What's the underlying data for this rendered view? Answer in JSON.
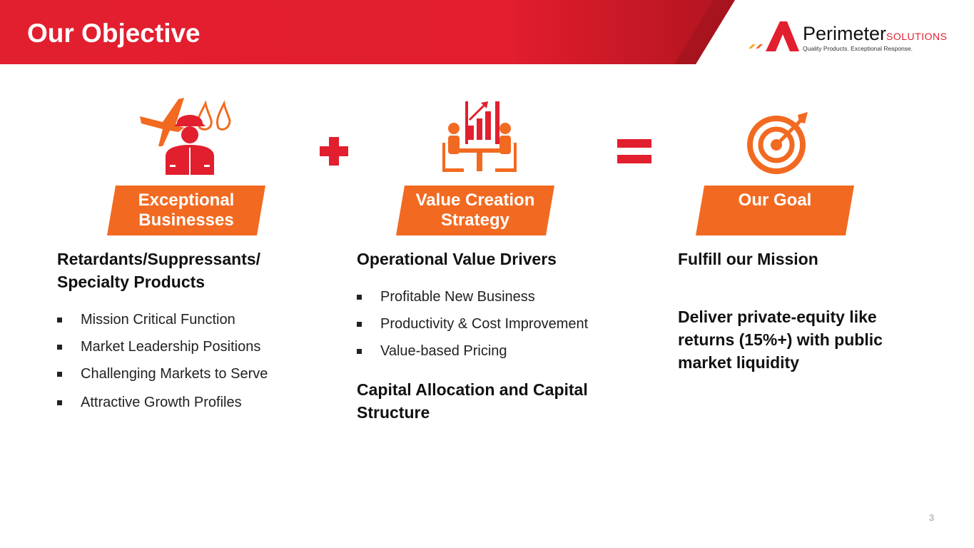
{
  "header": {
    "title": "Our Objective"
  },
  "logo": {
    "name": "Perimeter",
    "suffix": "SOLUTIONS",
    "tagline": "Quality Products. Exceptional Response."
  },
  "columns": [
    {
      "tag": "Exceptional Businesses",
      "icon": "firefighter-plane-drops-icon",
      "heading": "Retardants/Suppressants/ Specialty Products",
      "items": [
        "Mission Critical Function",
        "Market Leadership Positions",
        "Challenging Markets to Serve",
        "Attractive Growth Profiles"
      ]
    },
    {
      "tag": "Value Creation Strategy",
      "icon": "meeting-chart-icon",
      "heading": "Operational Value Drivers",
      "items": [
        "Profitable New Business",
        "Productivity & Cost Improvement",
        "Value-based Pricing"
      ],
      "heading2": "Capital Allocation and Capital Structure"
    },
    {
      "tag": "Our Goal",
      "icon": "target-icon",
      "heading": "Fulfill our Mission",
      "heading2": "Deliver private-equity like returns (15%+) with public market liquidity"
    }
  ],
  "operators": {
    "plus": "plus-icon",
    "equals": "equals-icon"
  },
  "colors": {
    "red": "#e21f2f",
    "orange": "#f26a21"
  },
  "page_number": "3"
}
